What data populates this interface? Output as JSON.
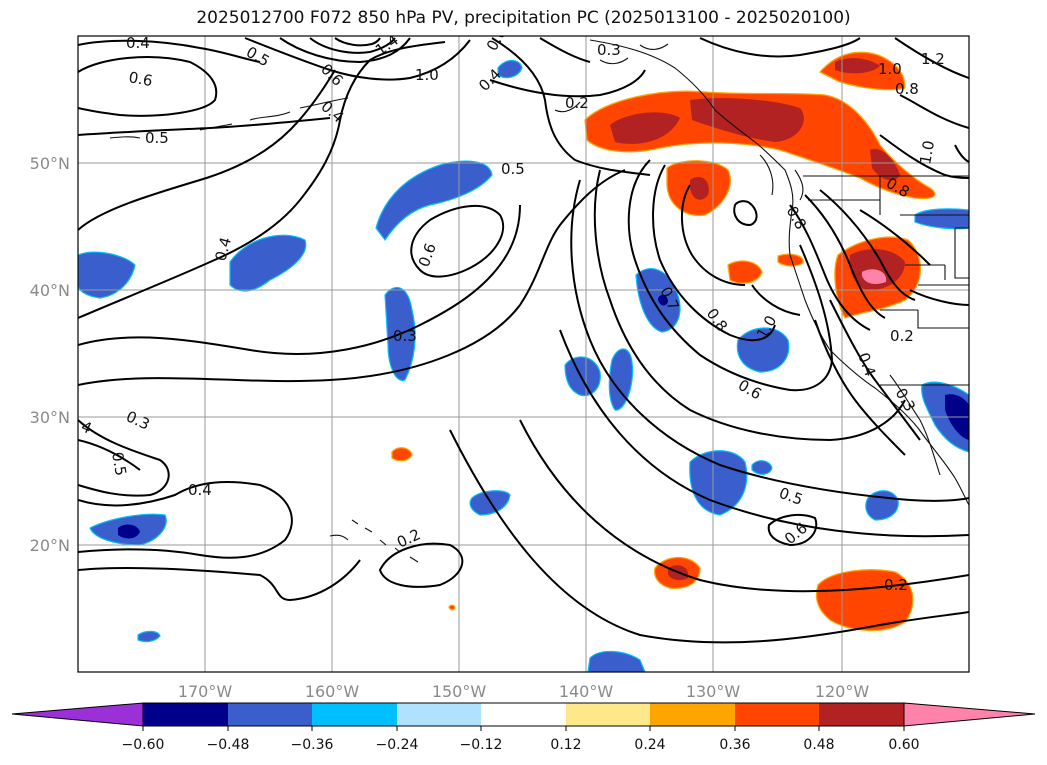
{
  "title": "2025012700 F072 850 hPa PV, precipitation PC (2025013100 - 2025020100)",
  "lat_labels": [
    "50°N",
    "40°N",
    "30°N",
    "20°N"
  ],
  "lon_labels": [
    "170°W",
    "160°W",
    "150°W",
    "140°W",
    "130°W",
    "120°W"
  ],
  "colorbar": {
    "colors": [
      "#9b30d8",
      "#00008b",
      "#3a5fcd",
      "#00bfff",
      "#b0e2ff",
      "#ffffff",
      "#ffe88a",
      "#ffa500",
      "#ff4500",
      "#b22222",
      "#ff82ab"
    ],
    "tick_labels": [
      "−0.60",
      "−0.48",
      "−0.36",
      "−0.24",
      "−0.12",
      "0.12",
      "0.24",
      "0.36",
      "0.48",
      "0.60"
    ]
  },
  "contour_labels": [
    "0.4",
    "0.5",
    "1.4",
    "0.6",
    "0.3",
    "1.2",
    "1.0",
    "0.8",
    "0.6",
    "0.4",
    "0.4",
    "1.0",
    "0.2",
    "0.5",
    "0.6",
    "0.5",
    "0.8",
    "0.4",
    "0.6",
    "0.8",
    "1.0",
    "0.3",
    "0.2",
    "0.7",
    "0.8",
    "1.0",
    "0.6",
    "0.4",
    "0.3",
    "0.3",
    "4",
    "0.5",
    "0.4",
    "0.5",
    "0.2",
    "0.6",
    "0.2"
  ]
}
